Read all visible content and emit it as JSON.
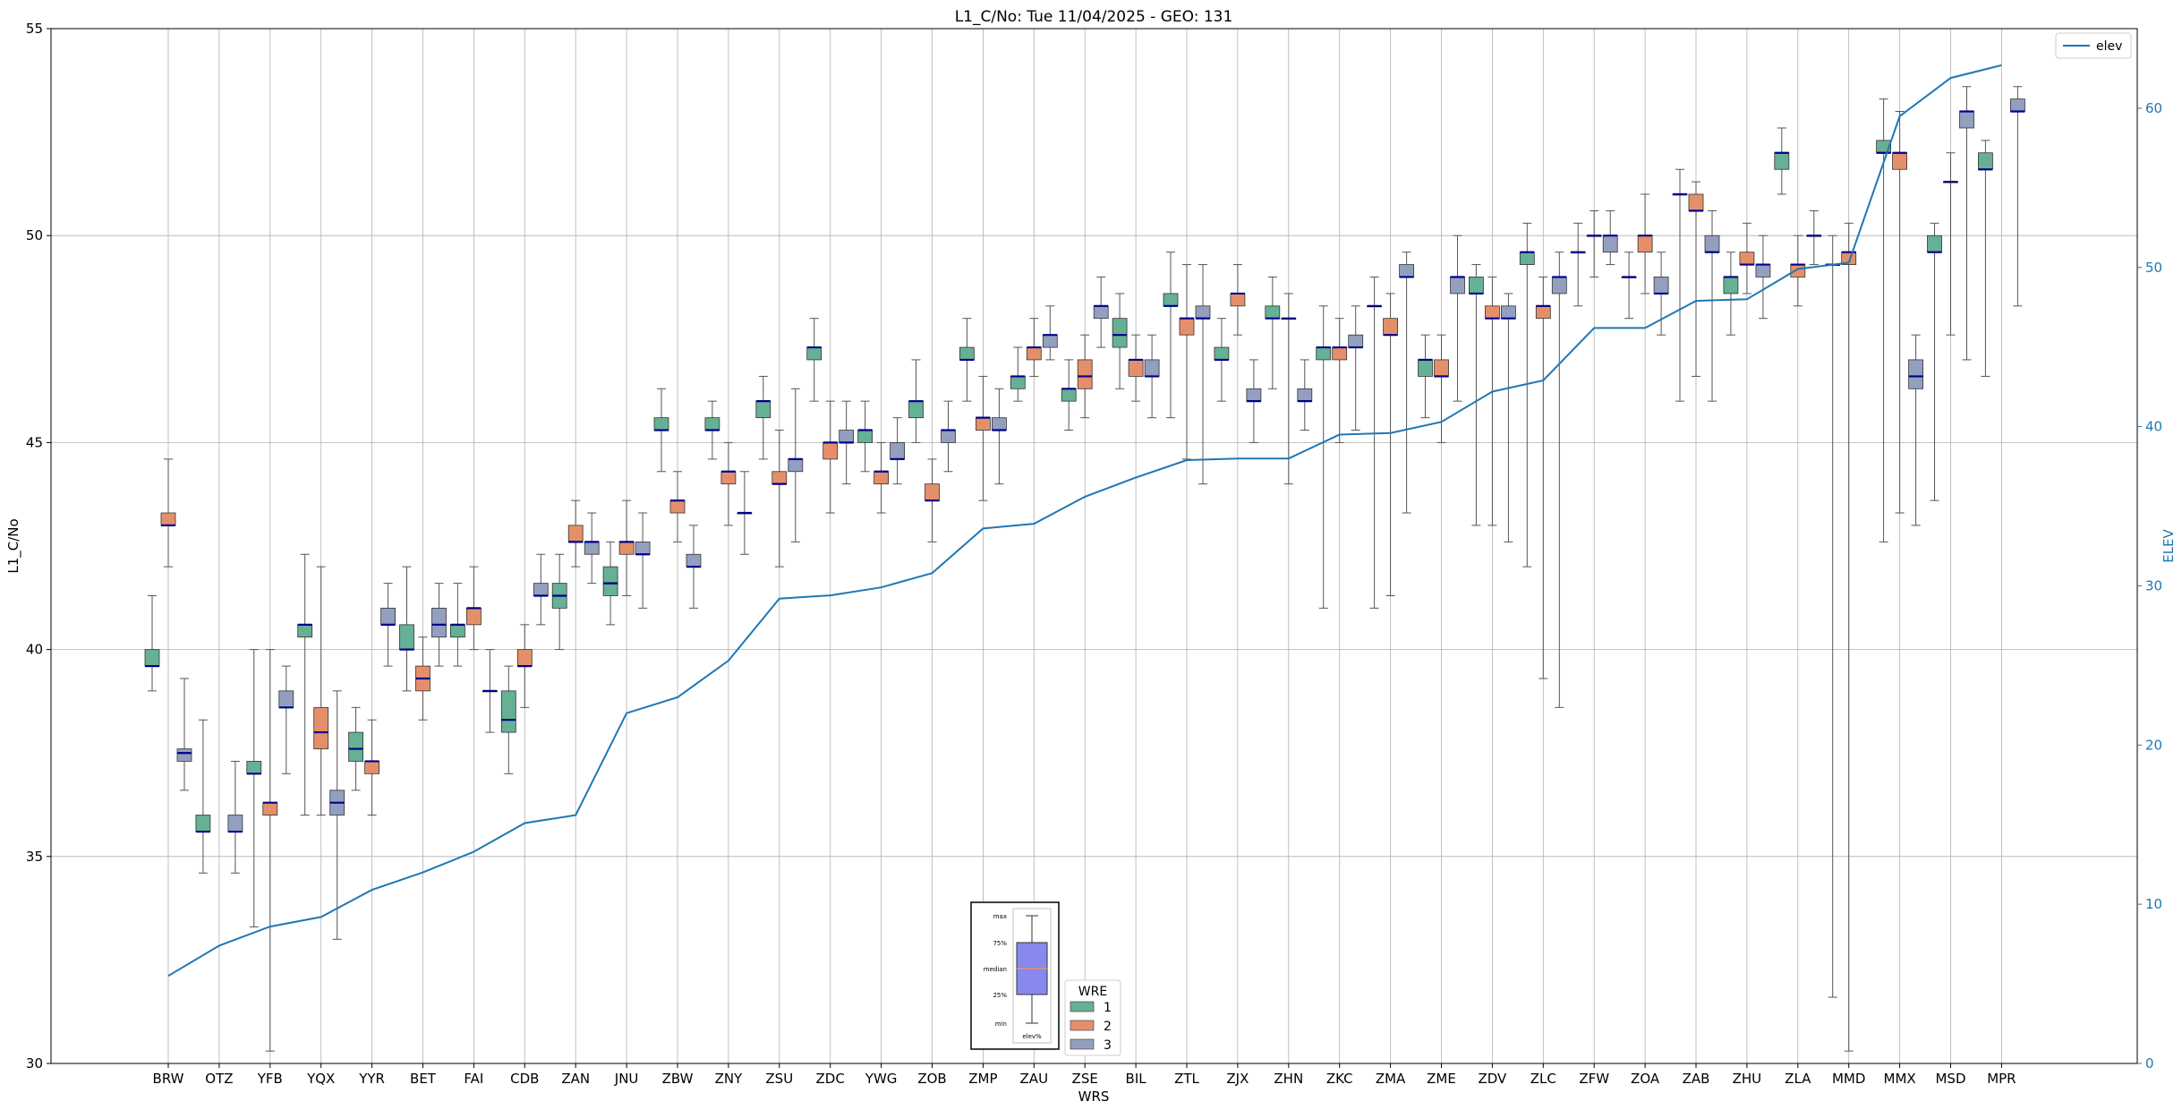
{
  "chart_data": {
    "type": "box",
    "title": "L1_C/No: Tue 11/04/2025 - GEO: 131",
    "xlabel": "WRS",
    "ylabel": "L1_C/No",
    "y2label": "ELEV",
    "ylim": [
      30,
      55
    ],
    "y2lim": [
      0,
      65
    ],
    "yticks": [
      30,
      35,
      40,
      45,
      50,
      55
    ],
    "y2ticks": [
      0,
      10,
      20,
      30,
      40,
      50,
      60
    ],
    "categories": [
      "BRW",
      "OTZ",
      "YFB",
      "YQX",
      "YYR",
      "BET",
      "FAI",
      "CDB",
      "ZAN",
      "JNU",
      "ZBW",
      "ZNY",
      "ZSU",
      "ZDC",
      "YWG",
      "ZOB",
      "ZMP",
      "ZAU",
      "ZSE",
      "BIL",
      "ZTL",
      "ZJX",
      "ZHN",
      "ZKC",
      "ZMA",
      "ZME",
      "ZDV",
      "ZLC",
      "ZFW",
      "ZOA",
      "ZAB",
      "ZHU",
      "ZLA",
      "MMD",
      "MMX",
      "MSD",
      "MPR"
    ],
    "series_colors": {
      "1": "#66b095",
      "2": "#e58f6a",
      "3": "#939fbf"
    },
    "median_color": "#00008b",
    "elev_color": "#1f77b4",
    "boxes": [
      {
        "cat": "BRW",
        "wre": "1",
        "min": 39.0,
        "q1": 39.6,
        "med": 39.6,
        "q3": 40.0,
        "max": 41.3
      },
      {
        "cat": "BRW",
        "wre": "2",
        "min": 42.0,
        "q1": 43.0,
        "med": 43.0,
        "q3": 43.3,
        "max": 44.6
      },
      {
        "cat": "BRW",
        "wre": "3",
        "min": 36.6,
        "q1": 37.3,
        "med": 37.5,
        "q3": 37.6,
        "max": 39.3
      },
      {
        "cat": "OTZ",
        "wre": "1",
        "min": 34.6,
        "q1": 35.6,
        "med": 35.6,
        "q3": 36.0,
        "max": 38.3
      },
      {
        "cat": "OTZ",
        "wre": "3",
        "min": 34.6,
        "q1": 35.6,
        "med": 35.6,
        "q3": 36.0,
        "max": 37.3
      },
      {
        "cat": "YFB",
        "wre": "1",
        "min": 33.3,
        "q1": 37.0,
        "med": 37.0,
        "q3": 37.3,
        "max": 40.0
      },
      {
        "cat": "YFB",
        "wre": "2",
        "min": 30.3,
        "q1": 36.0,
        "med": 36.3,
        "q3": 36.3,
        "max": 40.0
      },
      {
        "cat": "YFB",
        "wre": "3",
        "min": 37.0,
        "q1": 38.6,
        "med": 38.6,
        "q3": 39.0,
        "max": 39.6
      },
      {
        "cat": "YQX",
        "wre": "1",
        "min": 36.0,
        "q1": 40.3,
        "med": 40.6,
        "q3": 40.6,
        "max": 42.3
      },
      {
        "cat": "YQX",
        "wre": "2",
        "min": 36.0,
        "q1": 37.6,
        "med": 38.0,
        "q3": 38.6,
        "max": 42.0
      },
      {
        "cat": "YQX",
        "wre": "3",
        "min": 33.0,
        "q1": 36.0,
        "med": 36.3,
        "q3": 36.6,
        "max": 39.0
      },
      {
        "cat": "YYR",
        "wre": "1",
        "min": 36.6,
        "q1": 37.3,
        "med": 37.6,
        "q3": 38.0,
        "max": 38.6
      },
      {
        "cat": "YYR",
        "wre": "2",
        "min": 36.0,
        "q1": 37.0,
        "med": 37.3,
        "q3": 37.3,
        "max": 38.3
      },
      {
        "cat": "YYR",
        "wre": "3",
        "min": 39.6,
        "q1": 40.6,
        "med": 40.6,
        "q3": 41.0,
        "max": 41.6
      },
      {
        "cat": "BET",
        "wre": "1",
        "min": 39.0,
        "q1": 40.0,
        "med": 40.0,
        "q3": 40.6,
        "max": 42.0
      },
      {
        "cat": "BET",
        "wre": "2",
        "min": 38.3,
        "q1": 39.0,
        "med": 39.3,
        "q3": 39.6,
        "max": 40.3
      },
      {
        "cat": "BET",
        "wre": "3",
        "min": 39.6,
        "q1": 40.3,
        "med": 40.6,
        "q3": 41.0,
        "max": 41.6
      },
      {
        "cat": "FAI",
        "wre": "1",
        "min": 39.6,
        "q1": 40.3,
        "med": 40.6,
        "q3": 40.6,
        "max": 41.6
      },
      {
        "cat": "FAI",
        "wre": "2",
        "min": 40.0,
        "q1": 40.6,
        "med": 41.0,
        "q3": 41.0,
        "max": 42.0
      },
      {
        "cat": "FAI",
        "wre": "3",
        "min": 38.0,
        "q1": 39.0,
        "med": 39.0,
        "q3": 39.0,
        "max": 40.0
      },
      {
        "cat": "CDB",
        "wre": "1",
        "min": 37.0,
        "q1": 38.0,
        "med": 38.3,
        "q3": 39.0,
        "max": 39.6
      },
      {
        "cat": "CDB",
        "wre": "2",
        "min": 38.6,
        "q1": 39.6,
        "med": 39.6,
        "q3": 40.0,
        "max": 40.6
      },
      {
        "cat": "CDB",
        "wre": "3",
        "min": 40.6,
        "q1": 41.3,
        "med": 41.3,
        "q3": 41.6,
        "max": 42.3
      },
      {
        "cat": "ZAN",
        "wre": "1",
        "min": 40.0,
        "q1": 41.0,
        "med": 41.3,
        "q3": 41.6,
        "max": 42.3
      },
      {
        "cat": "ZAN",
        "wre": "2",
        "min": 42.0,
        "q1": 42.6,
        "med": 42.6,
        "q3": 43.0,
        "max": 43.6
      },
      {
        "cat": "ZAN",
        "wre": "3",
        "min": 41.6,
        "q1": 42.3,
        "med": 42.6,
        "q3": 42.6,
        "max": 43.3
      },
      {
        "cat": "JNU",
        "wre": "1",
        "min": 40.6,
        "q1": 41.3,
        "med": 41.6,
        "q3": 42.0,
        "max": 42.6
      },
      {
        "cat": "JNU",
        "wre": "2",
        "min": 41.3,
        "q1": 42.3,
        "med": 42.6,
        "q3": 42.6,
        "max": 43.6
      },
      {
        "cat": "JNU",
        "wre": "3",
        "min": 41.0,
        "q1": 42.3,
        "med": 42.3,
        "q3": 42.6,
        "max": 43.3
      },
      {
        "cat": "ZBW",
        "wre": "1",
        "min": 44.3,
        "q1": 45.3,
        "med": 45.3,
        "q3": 45.6,
        "max": 46.3
      },
      {
        "cat": "ZBW",
        "wre": "2",
        "min": 42.6,
        "q1": 43.3,
        "med": 43.6,
        "q3": 43.6,
        "max": 44.3
      },
      {
        "cat": "ZBW",
        "wre": "3",
        "min": 41.0,
        "q1": 42.0,
        "med": 42.0,
        "q3": 42.3,
        "max": 43.0
      },
      {
        "cat": "ZNY",
        "wre": "1",
        "min": 44.6,
        "q1": 45.3,
        "med": 45.3,
        "q3": 45.6,
        "max": 46.0
      },
      {
        "cat": "ZNY",
        "wre": "2",
        "min": 43.0,
        "q1": 44.0,
        "med": 44.3,
        "q3": 44.3,
        "max": 45.0
      },
      {
        "cat": "ZNY",
        "wre": "3",
        "min": 42.3,
        "q1": 43.3,
        "med": 43.3,
        "q3": 43.3,
        "max": 44.3
      },
      {
        "cat": "ZSU",
        "wre": "1",
        "min": 44.6,
        "q1": 45.6,
        "med": 46.0,
        "q3": 46.0,
        "max": 46.6
      },
      {
        "cat": "ZSU",
        "wre": "2",
        "min": 42.0,
        "q1": 44.0,
        "med": 44.0,
        "q3": 44.3,
        "max": 45.3
      },
      {
        "cat": "ZSU",
        "wre": "3",
        "min": 42.6,
        "q1": 44.3,
        "med": 44.6,
        "q3": 44.6,
        "max": 46.3
      },
      {
        "cat": "ZDC",
        "wre": "1",
        "min": 46.0,
        "q1": 47.0,
        "med": 47.3,
        "q3": 47.3,
        "max": 48.0
      },
      {
        "cat": "ZDC",
        "wre": "2",
        "min": 43.3,
        "q1": 44.6,
        "med": 45.0,
        "q3": 45.0,
        "max": 46.0
      },
      {
        "cat": "ZDC",
        "wre": "3",
        "min": 44.0,
        "q1": 45.0,
        "med": 45.0,
        "q3": 45.3,
        "max": 46.0
      },
      {
        "cat": "YWG",
        "wre": "1",
        "min": 44.3,
        "q1": 45.0,
        "med": 45.3,
        "q3": 45.3,
        "max": 46.0
      },
      {
        "cat": "YWG",
        "wre": "2",
        "min": 43.3,
        "q1": 44.0,
        "med": 44.3,
        "q3": 44.3,
        "max": 45.0
      },
      {
        "cat": "YWG",
        "wre": "3",
        "min": 44.0,
        "q1": 44.6,
        "med": 44.6,
        "q3": 45.0,
        "max": 45.6
      },
      {
        "cat": "ZOB",
        "wre": "1",
        "min": 45.0,
        "q1": 45.6,
        "med": 46.0,
        "q3": 46.0,
        "max": 47.0
      },
      {
        "cat": "ZOB",
        "wre": "2",
        "min": 42.6,
        "q1": 43.6,
        "med": 43.6,
        "q3": 44.0,
        "max": 44.6
      },
      {
        "cat": "ZOB",
        "wre": "3",
        "min": 44.3,
        "q1": 45.0,
        "med": 45.3,
        "q3": 45.3,
        "max": 46.0
      },
      {
        "cat": "ZMP",
        "wre": "1",
        "min": 46.0,
        "q1": 47.0,
        "med": 47.0,
        "q3": 47.3,
        "max": 48.0
      },
      {
        "cat": "ZMP",
        "wre": "2",
        "min": 43.6,
        "q1": 45.3,
        "med": 45.6,
        "q3": 45.6,
        "max": 46.6
      },
      {
        "cat": "ZMP",
        "wre": "3",
        "min": 44.0,
        "q1": 45.3,
        "med": 45.3,
        "q3": 45.6,
        "max": 46.3
      },
      {
        "cat": "ZAU",
        "wre": "1",
        "min": 46.0,
        "q1": 46.3,
        "med": 46.6,
        "q3": 46.6,
        "max": 47.3
      },
      {
        "cat": "ZAU",
        "wre": "2",
        "min": 46.6,
        "q1": 47.0,
        "med": 47.3,
        "q3": 47.3,
        "max": 48.0
      },
      {
        "cat": "ZAU",
        "wre": "3",
        "min": 47.0,
        "q1": 47.3,
        "med": 47.6,
        "q3": 47.6,
        "max": 48.3
      },
      {
        "cat": "ZSE",
        "wre": "1",
        "min": 45.3,
        "q1": 46.0,
        "med": 46.3,
        "q3": 46.3,
        "max": 47.0
      },
      {
        "cat": "ZSE",
        "wre": "2",
        "min": 45.6,
        "q1": 46.3,
        "med": 46.6,
        "q3": 47.0,
        "max": 47.6
      },
      {
        "cat": "ZSE",
        "wre": "3",
        "min": 47.3,
        "q1": 48.0,
        "med": 48.3,
        "q3": 48.3,
        "max": 49.0
      },
      {
        "cat": "BIL",
        "wre": "1",
        "min": 46.3,
        "q1": 47.3,
        "med": 47.6,
        "q3": 48.0,
        "max": 48.6
      },
      {
        "cat": "BIL",
        "wre": "2",
        "min": 46.0,
        "q1": 46.6,
        "med": 47.0,
        "q3": 47.0,
        "max": 47.6
      },
      {
        "cat": "BIL",
        "wre": "3",
        "min": 45.6,
        "q1": 46.6,
        "med": 46.6,
        "q3": 47.0,
        "max": 47.6
      },
      {
        "cat": "ZTL",
        "wre": "1",
        "min": 45.6,
        "q1": 48.3,
        "med": 48.3,
        "q3": 48.6,
        "max": 49.6
      },
      {
        "cat": "ZTL",
        "wre": "2",
        "min": 44.6,
        "q1": 47.6,
        "med": 48.0,
        "q3": 48.0,
        "max": 49.3
      },
      {
        "cat": "ZTL",
        "wre": "3",
        "min": 44.0,
        "q1": 48.0,
        "med": 48.0,
        "q3": 48.3,
        "max": 49.3
      },
      {
        "cat": "ZJX",
        "wre": "1",
        "min": 46.0,
        "q1": 47.0,
        "med": 47.0,
        "q3": 47.3,
        "max": 48.0
      },
      {
        "cat": "ZJX",
        "wre": "2",
        "min": 47.6,
        "q1": 48.3,
        "med": 48.6,
        "q3": 48.6,
        "max": 49.3
      },
      {
        "cat": "ZJX",
        "wre": "3",
        "min": 45.0,
        "q1": 46.0,
        "med": 46.0,
        "q3": 46.3,
        "max": 47.0
      },
      {
        "cat": "ZHN",
        "wre": "1",
        "min": 46.3,
        "q1": 48.0,
        "med": 48.0,
        "q3": 48.3,
        "max": 49.0
      },
      {
        "cat": "ZHN",
        "wre": "2",
        "min": 44.0,
        "q1": 48.0,
        "med": 48.0,
        "q3": 48.0,
        "max": 48.6
      },
      {
        "cat": "ZHN",
        "wre": "3",
        "min": 45.3,
        "q1": 46.0,
        "med": 46.0,
        "q3": 46.3,
        "max": 47.0
      },
      {
        "cat": "ZKC",
        "wre": "1",
        "min": 41.0,
        "q1": 47.0,
        "med": 47.3,
        "q3": 47.3,
        "max": 48.3
      },
      {
        "cat": "ZKC",
        "wre": "2",
        "min": 45.0,
        "q1": 47.0,
        "med": 47.3,
        "q3": 47.3,
        "max": 48.0
      },
      {
        "cat": "ZKC",
        "wre": "3",
        "min": 45.3,
        "q1": 47.3,
        "med": 47.3,
        "q3": 47.6,
        "max": 48.3
      },
      {
        "cat": "ZMA",
        "wre": "1",
        "min": 41.0,
        "q1": 48.3,
        "med": 48.3,
        "q3": 48.3,
        "max": 49.0
      },
      {
        "cat": "ZMA",
        "wre": "2",
        "min": 41.3,
        "q1": 47.6,
        "med": 47.6,
        "q3": 48.0,
        "max": 48.6
      },
      {
        "cat": "ZMA",
        "wre": "3",
        "min": 43.3,
        "q1": 49.0,
        "med": 49.0,
        "q3": 49.3,
        "max": 49.6
      },
      {
        "cat": "ZME",
        "wre": "1",
        "min": 45.6,
        "q1": 46.6,
        "med": 47.0,
        "q3": 47.0,
        "max": 47.6
      },
      {
        "cat": "ZME",
        "wre": "2",
        "min": 45.0,
        "q1": 46.6,
        "med": 46.6,
        "q3": 47.0,
        "max": 47.6
      },
      {
        "cat": "ZME",
        "wre": "3",
        "min": 46.0,
        "q1": 48.6,
        "med": 49.0,
        "q3": 49.0,
        "max": 50.0
      },
      {
        "cat": "ZDV",
        "wre": "1",
        "min": 43.0,
        "q1": 48.6,
        "med": 48.6,
        "q3": 49.0,
        "max": 49.3
      },
      {
        "cat": "ZDV",
        "wre": "2",
        "min": 43.0,
        "q1": 48.0,
        "med": 48.0,
        "q3": 48.3,
        "max": 49.0
      },
      {
        "cat": "ZDV",
        "wre": "3",
        "min": 42.6,
        "q1": 48.0,
        "med": 48.0,
        "q3": 48.3,
        "max": 48.6
      },
      {
        "cat": "ZLC",
        "wre": "1",
        "min": 42.0,
        "q1": 49.3,
        "med": 49.6,
        "q3": 49.6,
        "max": 50.3
      },
      {
        "cat": "ZLC",
        "wre": "2",
        "min": 39.3,
        "q1": 48.0,
        "med": 48.3,
        "q3": 48.3,
        "max": 49.0
      },
      {
        "cat": "ZLC",
        "wre": "3",
        "min": 38.6,
        "q1": 48.6,
        "med": 49.0,
        "q3": 49.0,
        "max": 49.6
      },
      {
        "cat": "ZFW",
        "wre": "1",
        "min": 48.3,
        "q1": 49.6,
        "med": 49.6,
        "q3": 49.6,
        "max": 50.3
      },
      {
        "cat": "ZFW",
        "wre": "2",
        "min": 49.0,
        "q1": 50.0,
        "med": 50.0,
        "q3": 50.0,
        "max": 50.6
      },
      {
        "cat": "ZFW",
        "wre": "3",
        "min": 49.3,
        "q1": 49.6,
        "med": 50.0,
        "q3": 50.0,
        "max": 50.6
      },
      {
        "cat": "ZOA",
        "wre": "1",
        "min": 48.0,
        "q1": 49.0,
        "med": 49.0,
        "q3": 49.0,
        "max": 49.6
      },
      {
        "cat": "ZOA",
        "wre": "2",
        "min": 48.6,
        "q1": 49.6,
        "med": 50.0,
        "q3": 50.0,
        "max": 51.0
      },
      {
        "cat": "ZOA",
        "wre": "3",
        "min": 47.6,
        "q1": 48.6,
        "med": 48.6,
        "q3": 49.0,
        "max": 49.6
      },
      {
        "cat": "ZAB",
        "wre": "1",
        "min": 46.0,
        "q1": 51.0,
        "med": 51.0,
        "q3": 51.0,
        "max": 51.6
      },
      {
        "cat": "ZAB",
        "wre": "2",
        "min": 46.6,
        "q1": 50.6,
        "med": 50.6,
        "q3": 51.0,
        "max": 51.3
      },
      {
        "cat": "ZAB",
        "wre": "3",
        "min": 46.0,
        "q1": 49.6,
        "med": 49.6,
        "q3": 50.0,
        "max": 50.6
      },
      {
        "cat": "ZHU",
        "wre": "1",
        "min": 47.6,
        "q1": 48.6,
        "med": 49.0,
        "q3": 49.0,
        "max": 49.6
      },
      {
        "cat": "ZHU",
        "wre": "2",
        "min": 48.6,
        "q1": 49.3,
        "med": 49.3,
        "q3": 49.6,
        "max": 50.3
      },
      {
        "cat": "ZHU",
        "wre": "3",
        "min": 48.0,
        "q1": 49.0,
        "med": 49.3,
        "q3": 49.3,
        "max": 50.0
      },
      {
        "cat": "ZLA",
        "wre": "1",
        "min": 51.0,
        "q1": 51.6,
        "med": 52.0,
        "q3": 52.0,
        "max": 52.6
      },
      {
        "cat": "ZLA",
        "wre": "2",
        "min": 48.3,
        "q1": 49.0,
        "med": 49.3,
        "q3": 49.3,
        "max": 50.0
      },
      {
        "cat": "ZLA",
        "wre": "3",
        "min": 49.3,
        "q1": 50.0,
        "med": 50.0,
        "q3": 50.0,
        "max": 50.6
      },
      {
        "cat": "MMD",
        "wre": "1",
        "min": 31.6,
        "q1": 49.3,
        "med": 49.3,
        "q3": 49.3,
        "max": 50.0
      },
      {
        "cat": "MMD",
        "wre": "2",
        "min": 30.3,
        "q1": 49.3,
        "med": 49.6,
        "q3": 49.6,
        "max": 50.3
      },
      {
        "cat": "MMX",
        "wre": "1",
        "min": 42.6,
        "q1": 52.0,
        "med": 52.0,
        "q3": 52.3,
        "max": 53.3
      },
      {
        "cat": "MMX",
        "wre": "2",
        "min": 43.3,
        "q1": 51.6,
        "med": 52.0,
        "q3": 52.0,
        "max": 53.0
      },
      {
        "cat": "MMX",
        "wre": "3",
        "min": 43.0,
        "q1": 46.3,
        "med": 46.6,
        "q3": 47.0,
        "max": 47.6
      },
      {
        "cat": "MSD",
        "wre": "1",
        "min": 43.6,
        "q1": 49.6,
        "med": 49.6,
        "q3": 50.0,
        "max": 50.3
      },
      {
        "cat": "MSD",
        "wre": "2",
        "min": 47.6,
        "q1": 51.3,
        "med": 51.3,
        "q3": 51.3,
        "max": 52.0
      },
      {
        "cat": "MSD",
        "wre": "3",
        "min": 47.0,
        "q1": 52.6,
        "med": 53.0,
        "q3": 53.0,
        "max": 53.6
      },
      {
        "cat": "MPR",
        "wre": "1",
        "min": 46.6,
        "q1": 51.6,
        "med": 51.6,
        "q3": 52.0,
        "max": 52.3
      },
      {
        "cat": "MPR",
        "wre": "3",
        "min": 48.3,
        "q1": 53.0,
        "med": 53.0,
        "q3": 53.3,
        "max": 53.6
      }
    ],
    "elev": [
      5.5,
      7.4,
      8.6,
      9.2,
      10.9,
      12.0,
      13.3,
      15.1,
      15.6,
      22.0,
      23.0,
      25.3,
      29.2,
      29.4,
      29.9,
      30.8,
      33.6,
      33.9,
      35.6,
      36.8,
      37.9,
      38.0,
      38.0,
      39.5,
      39.6,
      40.3,
      42.2,
      42.9,
      46.2,
      46.2,
      47.9,
      48.0,
      49.9,
      50.3,
      59.5,
      61.9,
      62.7
    ],
    "legend": {
      "title": "WRE",
      "entries": [
        "1",
        "2",
        "3"
      ]
    },
    "elev_legend": "elev",
    "inset_labels": [
      "max",
      "75%",
      "median",
      "25%",
      "min"
    ],
    "inset_caption": "elev%"
  }
}
